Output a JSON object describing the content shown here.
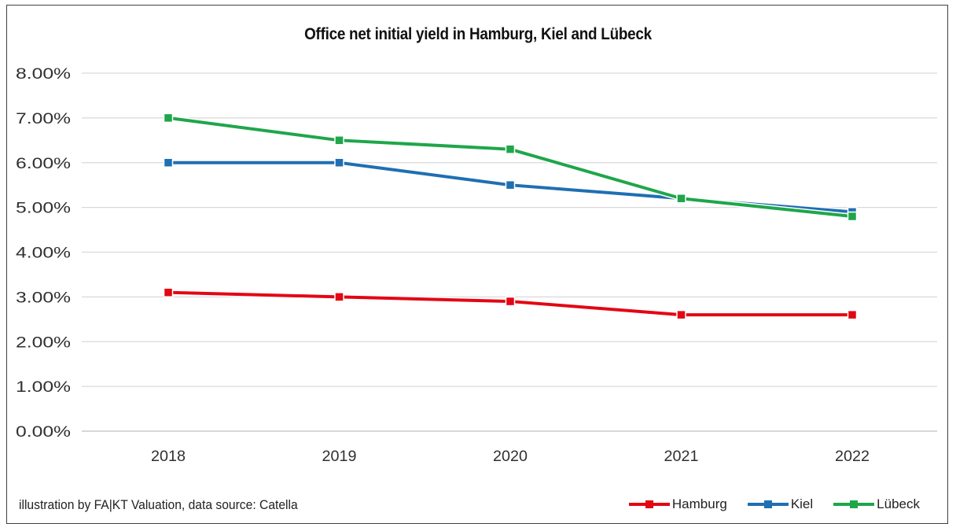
{
  "chart_data": {
    "type": "line",
    "title": "Office net initial yield in Hamburg, Kiel and Lübeck",
    "categories": [
      "2018",
      "2019",
      "2020",
      "2021",
      "2022"
    ],
    "y_ticks": [
      "0.00%",
      "1.00%",
      "2.00%",
      "3.00%",
      "4.00%",
      "5.00%",
      "6.00%",
      "7.00%",
      "8.00%"
    ],
    "ylim": [
      0,
      8
    ],
    "grid": "horizontal",
    "legend_position": "bottom-right",
    "series": [
      {
        "name": "Hamburg",
        "color": "#e30613",
        "values": [
          3.1,
          3.0,
          2.9,
          2.6,
          2.6
        ]
      },
      {
        "name": "Kiel",
        "color": "#1f6fb2",
        "values": [
          6.0,
          6.0,
          5.5,
          5.2,
          4.9
        ]
      },
      {
        "name": "Lübeck",
        "color": "#1fa64a",
        "values": [
          7.0,
          6.5,
          6.3,
          5.2,
          4.8
        ]
      }
    ]
  },
  "footer": {
    "source_text": "illustration by FA|KT Valuation, data source: Catella"
  }
}
